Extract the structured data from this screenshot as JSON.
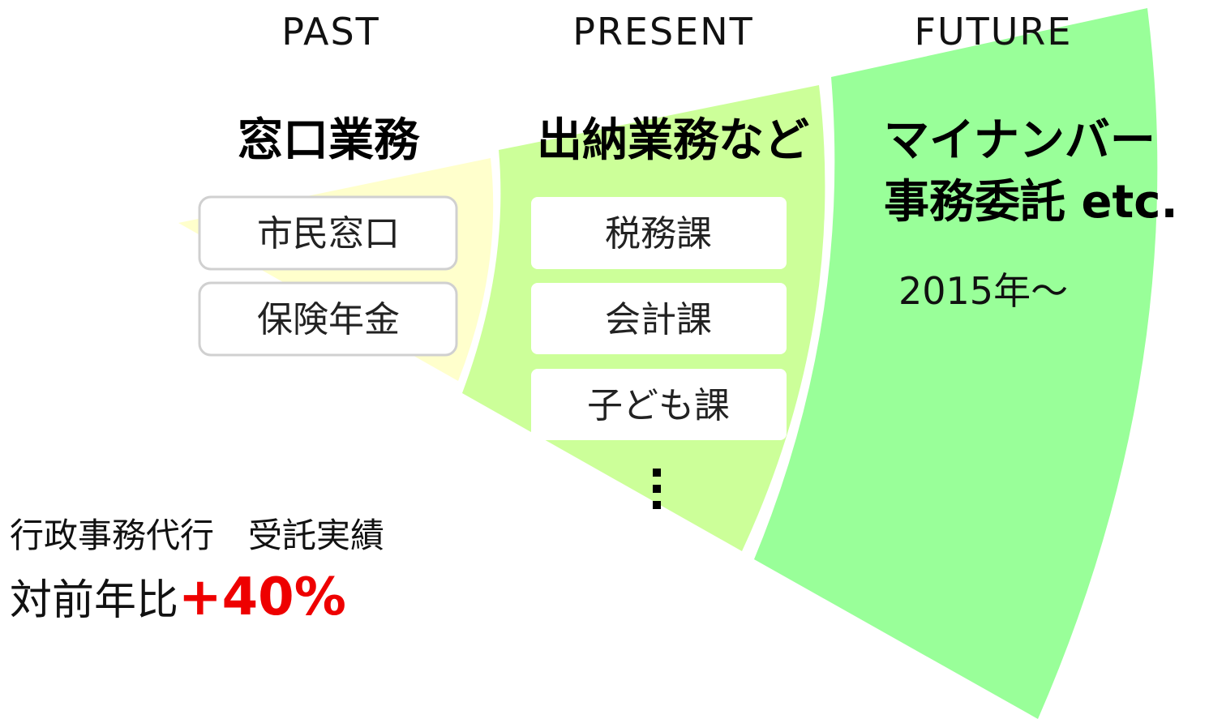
{
  "columns": [
    {
      "era": "PAST",
      "heading": [
        "窓口業務"
      ],
      "items": [
        "市民窓口",
        "保険年金"
      ]
    },
    {
      "era": "PRESENT",
      "heading": [
        "出納業務など"
      ],
      "items": [
        "税務課",
        "会計課",
        "子ども課"
      ]
    },
    {
      "era": "FUTURE",
      "heading": [
        "マイナンバー",
        "事務委託 etc."
      ],
      "since": "2015年～"
    }
  ],
  "summary": {
    "label": "行政事務代行　受託実績",
    "prefix": "対前年比",
    "growth": "+40%"
  }
}
